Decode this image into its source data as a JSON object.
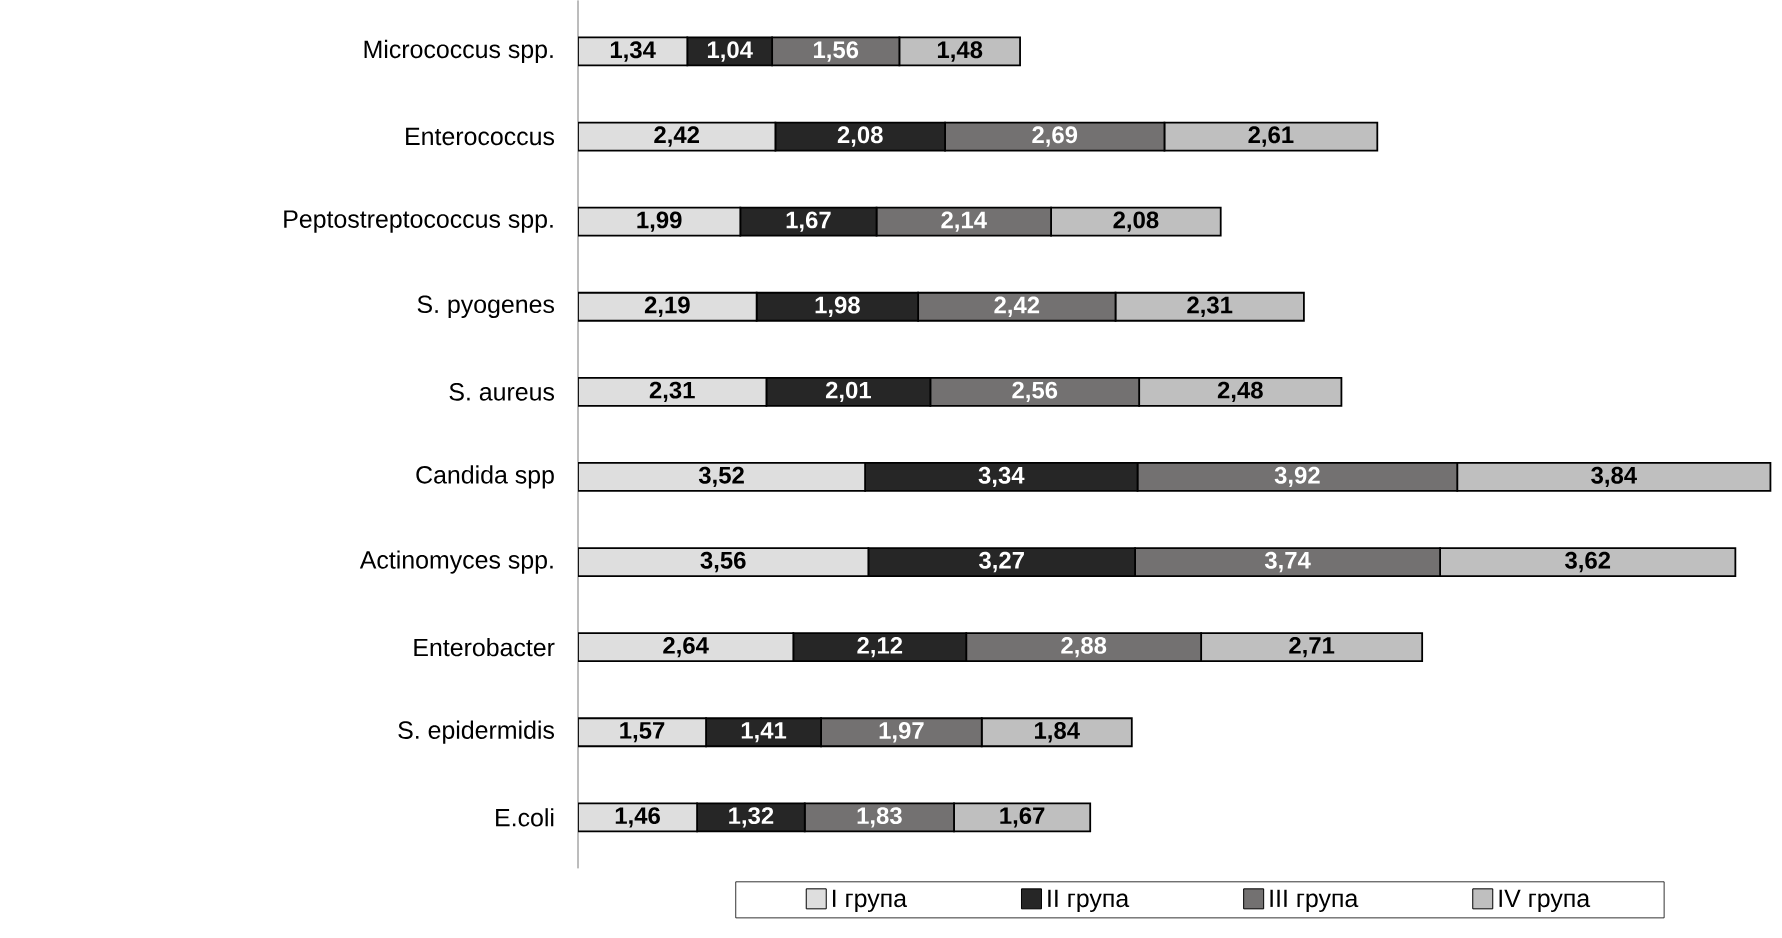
{
  "chart_data": {
    "type": "bar",
    "orientation": "horizontal",
    "stacked": true,
    "categories": [
      "Micrococcus spp.",
      "Enterococcus",
      "Peptostreptococcus spp.",
      "S. pyogenes",
      "S. aureus",
      "Candida spp",
      "Actinomyces spp.",
      "Enterobacter",
      "S. epidermidis",
      "E.coli"
    ],
    "legend": "bottom",
    "series": [
      {
        "name": "I група",
        "color": "#dedede",
        "values": [
          1.34,
          2.42,
          1.99,
          2.19,
          2.31,
          3.52,
          3.56,
          2.64,
          1.57,
          1.46
        ],
        "value_labels": [
          "1,34",
          "2,42",
          "1,99",
          "2,19",
          "2,31",
          "3,52",
          "3,56",
          "2,64",
          "1,57",
          "1,46"
        ]
      },
      {
        "name": "II група",
        "color": "#262626",
        "values": [
          1.04,
          2.08,
          1.67,
          1.98,
          2.01,
          3.34,
          3.27,
          2.12,
          1.41,
          1.32
        ],
        "value_labels": [
          "1,04",
          "2,08",
          "1,67",
          "1,98",
          "2,01",
          "3,34",
          "3,27",
          "2,12",
          "1,41",
          "1,32"
        ]
      },
      {
        "name": "III група",
        "color": "#737171",
        "values": [
          1.56,
          2.69,
          2.14,
          2.42,
          2.56,
          3.92,
          3.74,
          2.88,
          1.97,
          1.83
        ],
        "value_labels": [
          "1,56",
          "2,69",
          "2,14",
          "2,42",
          "2,56",
          "3,92",
          "3,74",
          "2,88",
          "1,97",
          "1,83"
        ]
      },
      {
        "name": "IV група",
        "color": "#bfbfbf",
        "values": [
          1.48,
          2.61,
          2.08,
          2.31,
          2.48,
          3.84,
          3.62,
          2.71,
          1.84,
          1.67
        ],
        "value_labels": [
          "1,48",
          "2,61",
          "2,08",
          "2,31",
          "2,48",
          "3,84",
          "3,62",
          "2,71",
          "1,84",
          "1,67"
        ]
      }
    ]
  }
}
